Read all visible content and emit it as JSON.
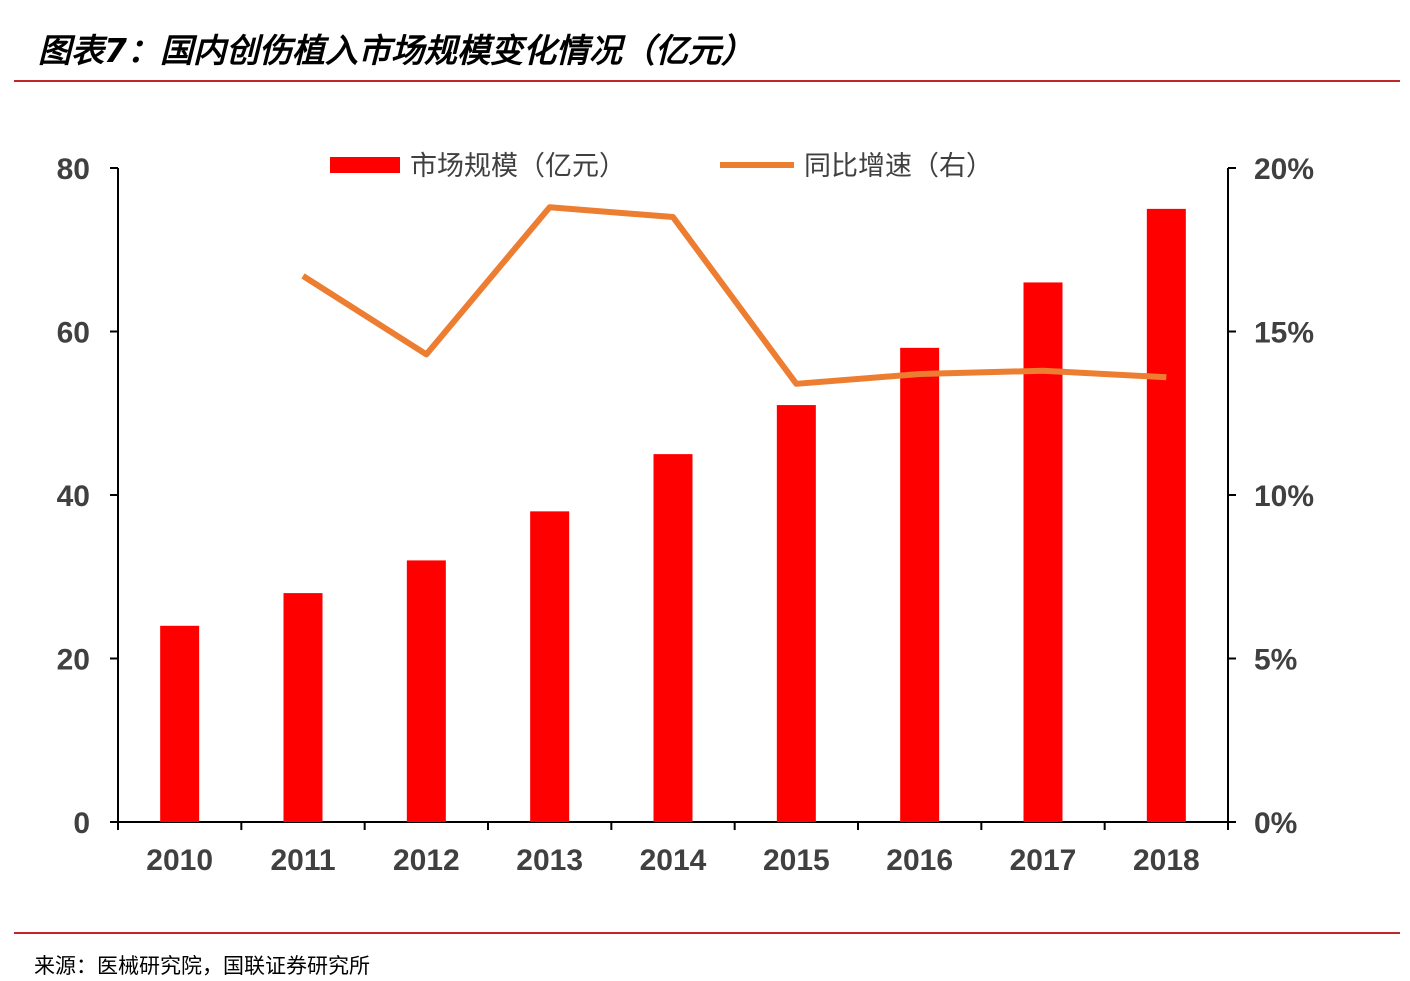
{
  "header": {
    "title": "图表7：国内创伤植入市场规模变化情况（亿元）"
  },
  "footer": {
    "source": "来源：医械研究院，国联证券研究所"
  },
  "colors": {
    "bar": "#ff0000",
    "line": "#ed7d31",
    "rule": "#c0272d",
    "axis": "#404040"
  },
  "chart_data": {
    "type": "bar",
    "title": "",
    "categories": [
      "2010",
      "2011",
      "2012",
      "2013",
      "2014",
      "2015",
      "2016",
      "2017",
      "2018"
    ],
    "series": [
      {
        "name": "市场规模（亿元）",
        "type": "bar",
        "axis": "left",
        "values": [
          24,
          28,
          32,
          38,
          45,
          51,
          58,
          66,
          75
        ]
      },
      {
        "name": "同比增速（右）",
        "type": "line",
        "axis": "right",
        "values": [
          null,
          0.167,
          0.143,
          0.188,
          0.185,
          0.134,
          0.137,
          0.138,
          0.136
        ]
      }
    ],
    "y_left": {
      "lim": [
        0,
        80
      ],
      "ticks": [
        "0",
        "20",
        "40",
        "60",
        "80"
      ]
    },
    "y_right": {
      "lim": [
        0,
        0.2
      ],
      "ticks": [
        "0%",
        "5%",
        "10%",
        "15%",
        "20%"
      ]
    },
    "legend": "top-center",
    "grid": false
  }
}
